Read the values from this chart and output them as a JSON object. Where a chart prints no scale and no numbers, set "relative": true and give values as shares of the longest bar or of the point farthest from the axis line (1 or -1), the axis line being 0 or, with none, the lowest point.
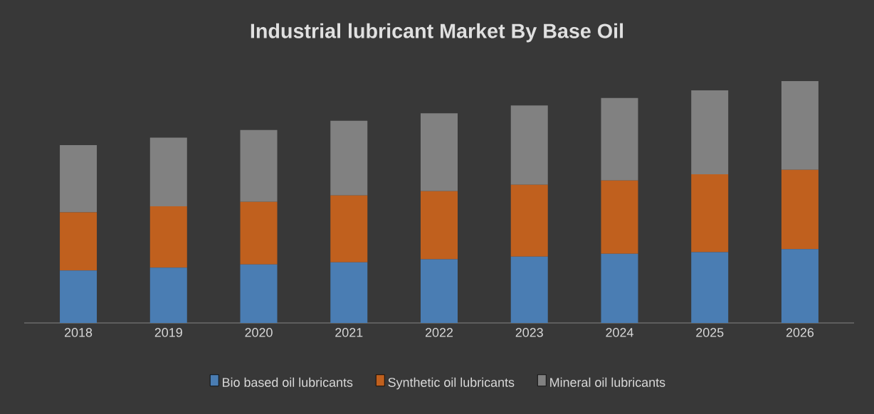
{
  "chart_data": {
    "type": "bar",
    "title": "Industrial lubricant Market By Base Oil",
    "stacked": true,
    "relative": true,
    "legend": "bottom",
    "categories": [
      "2018",
      "2019",
      "2020",
      "2021",
      "2022",
      "2023",
      "2024",
      "2025",
      "2026"
    ],
    "series": [
      {
        "name": "Bio based oil lubricants",
        "color": "#4a7db3",
        "values": [
          0.217,
          0.229,
          0.242,
          0.251,
          0.263,
          0.274,
          0.286,
          0.293,
          0.305
        ]
      },
      {
        "name": "Synthetic oil lubricants",
        "color": "#c0601e",
        "values": [
          0.24,
          0.253,
          0.259,
          0.276,
          0.282,
          0.297,
          0.303,
          0.322,
          0.328
        ]
      },
      {
        "name": "Mineral oil lubricants",
        "color": "#818181",
        "values": [
          0.278,
          0.284,
          0.297,
          0.309,
          0.322,
          0.328,
          0.341,
          0.347,
          0.367
        ]
      }
    ]
  }
}
